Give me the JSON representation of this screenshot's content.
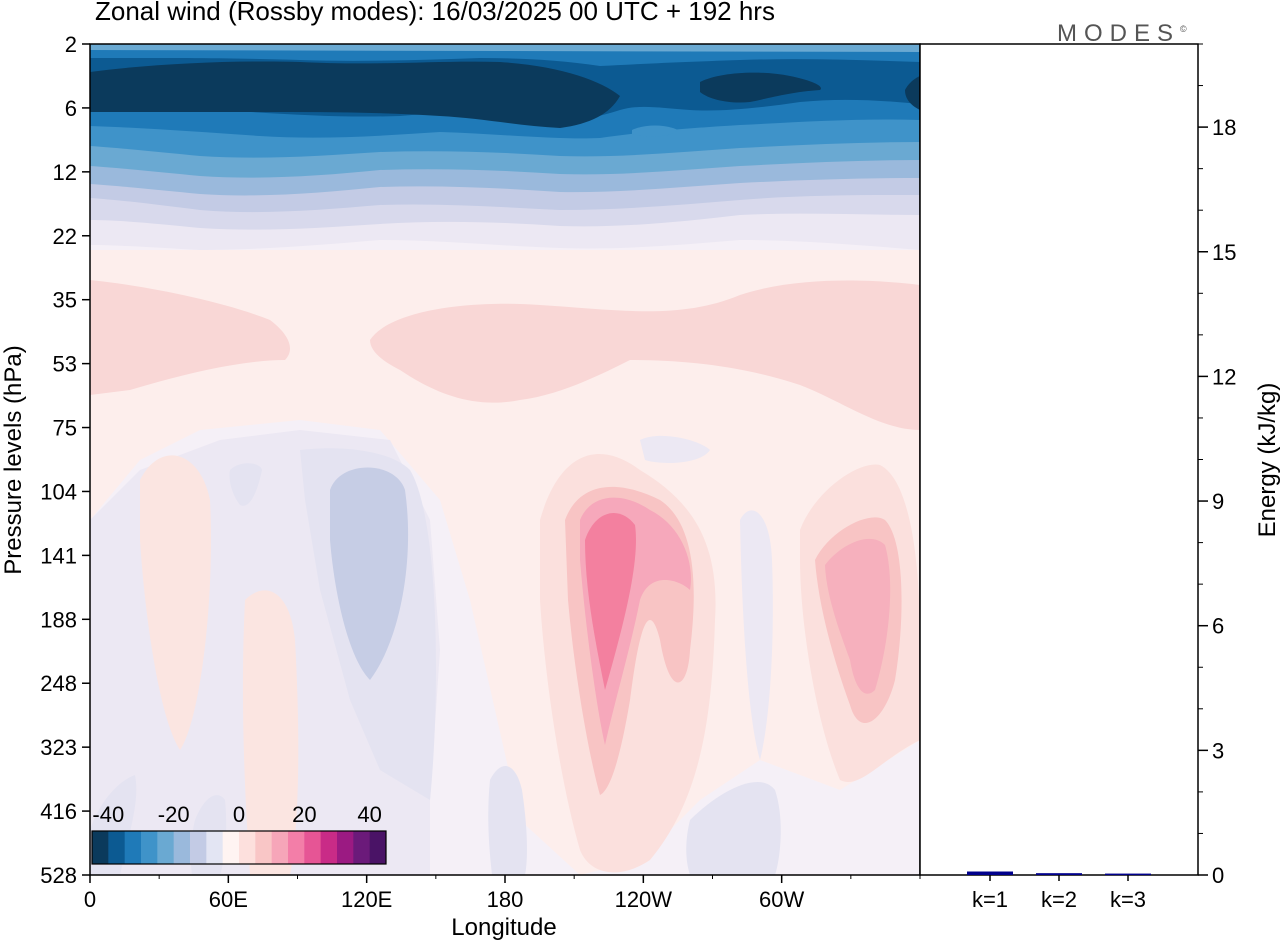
{
  "header": {
    "title": "Zonal wind (Rossby modes):  16/03/2025  00 UTC  + 192 hrs",
    "logo_text": "MODES",
    "logo_mark": "©"
  },
  "chart_data": [
    {
      "type": "heatmap",
      "title": "Zonal wind (Rossby modes):  16/03/2025  00 UTC  + 192 hrs",
      "xlabel": "Longitude",
      "ylabel": "Pressure levels (hPa)",
      "x_ticks": [
        "0",
        "60E",
        "120E",
        "180",
        "120W",
        "60W"
      ],
      "x_tick_values": [
        0,
        60,
        120,
        180,
        240,
        300
      ],
      "xlim": [
        0,
        360
      ],
      "y_ticks": [
        "2",
        "6",
        "12",
        "22",
        "35",
        "53",
        "75",
        "104",
        "141",
        "188",
        "248",
        "323",
        "416",
        "528"
      ],
      "y_scale": "log-pressure (top = 2 hPa, bottom = 528 hPa)",
      "colorbar": {
        "tick_labels": [
          "-40",
          "-20",
          "0",
          "20",
          "40"
        ],
        "tick_values": [
          -40,
          -20,
          0,
          20,
          40
        ],
        "colors": [
          "#0b3a5c",
          "#0c5a92",
          "#1f7ab8",
          "#3f93c9",
          "#6aa9d2",
          "#9ab9dc",
          "#c3cbe5",
          "#e3e5f3",
          "#fff4f2",
          "#fde0dd",
          "#f9c6c6",
          "#f6a6b9",
          "#f37ea8",
          "#e65595",
          "#c92b87",
          "#9b1a82",
          "#6b1a7a",
          "#4a1366"
        ]
      },
      "features": [
        {
          "name": "stratospheric easterlies",
          "sign": "negative",
          "level_range_hPa": [
            2,
            22
          ],
          "peak_value_approx": -40
        },
        {
          "name": "pink band",
          "sign": "positive",
          "level_range_hPa": [
            35,
            75
          ],
          "peak_value_approx": 8
        },
        {
          "name": "max near 120W",
          "sign": "positive",
          "level_range_hPa": [
            104,
            323
          ],
          "peak_value_approx": 24
        },
        {
          "name": "max near 45W",
          "sign": "positive",
          "level_range_hPa": [
            104,
            323
          ],
          "peak_value_approx": 18
        },
        {
          "name": "min near 105E",
          "sign": "negative",
          "level_range_hPa": [
            104,
            248
          ],
          "peak_value_approx": -10
        }
      ]
    },
    {
      "type": "bar",
      "categories": [
        "k=1",
        "k=2",
        "k=3"
      ],
      "values": [
        0.06,
        0.02,
        0.01
      ],
      "ylabel": "Energy (kJ/kg)",
      "ylim": [
        0,
        20
      ],
      "y_ticks": [
        "0",
        "3",
        "6",
        "9",
        "12",
        "15",
        "18"
      ],
      "y_tick_values": [
        0,
        3,
        6,
        9,
        12,
        15,
        18
      ],
      "bar_color": "#00008b"
    }
  ]
}
